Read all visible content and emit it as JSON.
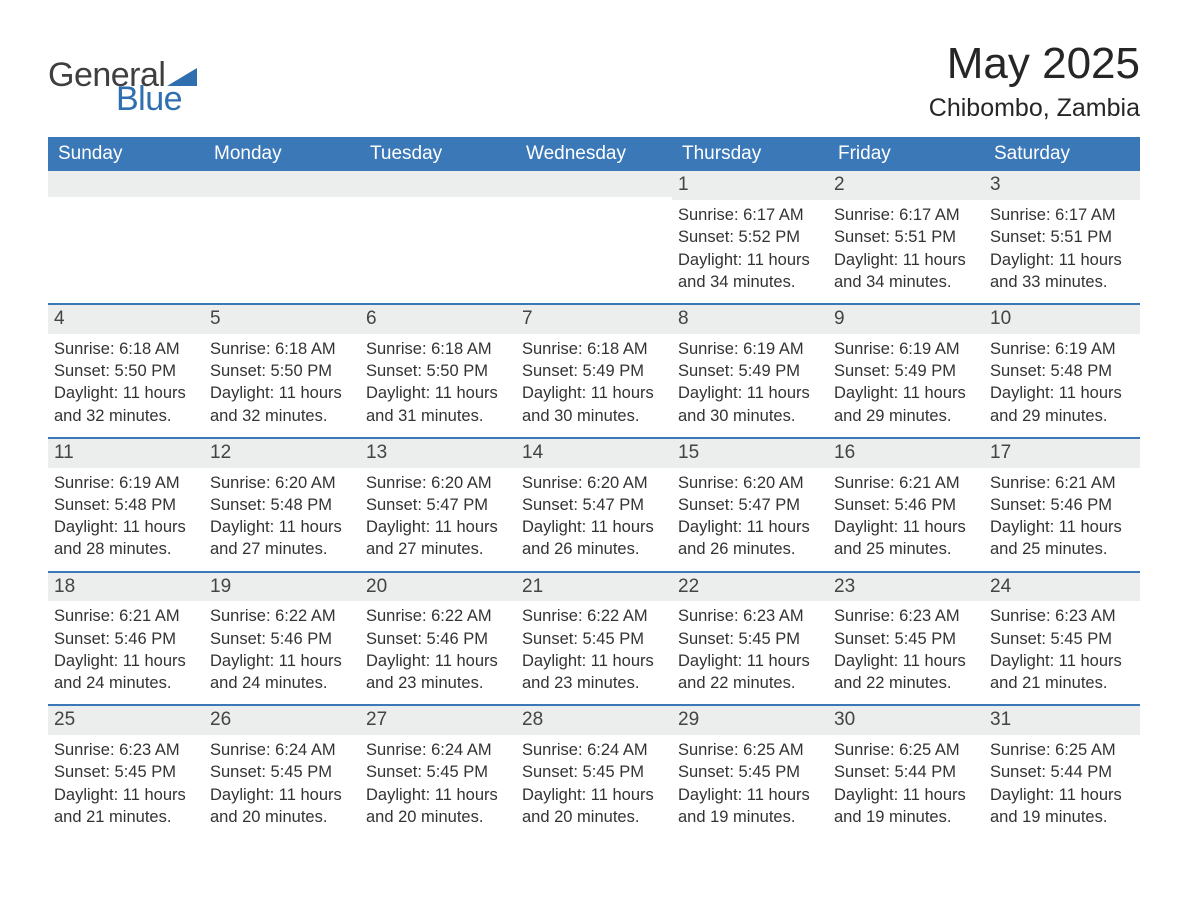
{
  "logo": {
    "text1": "General",
    "text2": "Blue",
    "tri_color": "#2f6fb0"
  },
  "title": "May 2025",
  "location": "Chibombo, Zambia",
  "colors": {
    "header_bg": "#3b78b8",
    "header_text": "#ffffff",
    "row_accent": "#3b78b8",
    "daynum_bg": "#eceded",
    "body_text": "#333333",
    "title_text": "#262626"
  },
  "weekdays": [
    "Sunday",
    "Monday",
    "Tuesday",
    "Wednesday",
    "Thursday",
    "Friday",
    "Saturday"
  ],
  "weeks": [
    [
      {
        "day": "",
        "sunrise": "",
        "sunset": "",
        "daylight": ""
      },
      {
        "day": "",
        "sunrise": "",
        "sunset": "",
        "daylight": ""
      },
      {
        "day": "",
        "sunrise": "",
        "sunset": "",
        "daylight": ""
      },
      {
        "day": "",
        "sunrise": "",
        "sunset": "",
        "daylight": ""
      },
      {
        "day": "1",
        "sunrise": "Sunrise: 6:17 AM",
        "sunset": "Sunset: 5:52 PM",
        "daylight": "Daylight: 11 hours and 34 minutes."
      },
      {
        "day": "2",
        "sunrise": "Sunrise: 6:17 AM",
        "sunset": "Sunset: 5:51 PM",
        "daylight": "Daylight: 11 hours and 34 minutes."
      },
      {
        "day": "3",
        "sunrise": "Sunrise: 6:17 AM",
        "sunset": "Sunset: 5:51 PM",
        "daylight": "Daylight: 11 hours and 33 minutes."
      }
    ],
    [
      {
        "day": "4",
        "sunrise": "Sunrise: 6:18 AM",
        "sunset": "Sunset: 5:50 PM",
        "daylight": "Daylight: 11 hours and 32 minutes."
      },
      {
        "day": "5",
        "sunrise": "Sunrise: 6:18 AM",
        "sunset": "Sunset: 5:50 PM",
        "daylight": "Daylight: 11 hours and 32 minutes."
      },
      {
        "day": "6",
        "sunrise": "Sunrise: 6:18 AM",
        "sunset": "Sunset: 5:50 PM",
        "daylight": "Daylight: 11 hours and 31 minutes."
      },
      {
        "day": "7",
        "sunrise": "Sunrise: 6:18 AM",
        "sunset": "Sunset: 5:49 PM",
        "daylight": "Daylight: 11 hours and 30 minutes."
      },
      {
        "day": "8",
        "sunrise": "Sunrise: 6:19 AM",
        "sunset": "Sunset: 5:49 PM",
        "daylight": "Daylight: 11 hours and 30 minutes."
      },
      {
        "day": "9",
        "sunrise": "Sunrise: 6:19 AM",
        "sunset": "Sunset: 5:49 PM",
        "daylight": "Daylight: 11 hours and 29 minutes."
      },
      {
        "day": "10",
        "sunrise": "Sunrise: 6:19 AM",
        "sunset": "Sunset: 5:48 PM",
        "daylight": "Daylight: 11 hours and 29 minutes."
      }
    ],
    [
      {
        "day": "11",
        "sunrise": "Sunrise: 6:19 AM",
        "sunset": "Sunset: 5:48 PM",
        "daylight": "Daylight: 11 hours and 28 minutes."
      },
      {
        "day": "12",
        "sunrise": "Sunrise: 6:20 AM",
        "sunset": "Sunset: 5:48 PM",
        "daylight": "Daylight: 11 hours and 27 minutes."
      },
      {
        "day": "13",
        "sunrise": "Sunrise: 6:20 AM",
        "sunset": "Sunset: 5:47 PM",
        "daylight": "Daylight: 11 hours and 27 minutes."
      },
      {
        "day": "14",
        "sunrise": "Sunrise: 6:20 AM",
        "sunset": "Sunset: 5:47 PM",
        "daylight": "Daylight: 11 hours and 26 minutes."
      },
      {
        "day": "15",
        "sunrise": "Sunrise: 6:20 AM",
        "sunset": "Sunset: 5:47 PM",
        "daylight": "Daylight: 11 hours and 26 minutes."
      },
      {
        "day": "16",
        "sunrise": "Sunrise: 6:21 AM",
        "sunset": "Sunset: 5:46 PM",
        "daylight": "Daylight: 11 hours and 25 minutes."
      },
      {
        "day": "17",
        "sunrise": "Sunrise: 6:21 AM",
        "sunset": "Sunset: 5:46 PM",
        "daylight": "Daylight: 11 hours and 25 minutes."
      }
    ],
    [
      {
        "day": "18",
        "sunrise": "Sunrise: 6:21 AM",
        "sunset": "Sunset: 5:46 PM",
        "daylight": "Daylight: 11 hours and 24 minutes."
      },
      {
        "day": "19",
        "sunrise": "Sunrise: 6:22 AM",
        "sunset": "Sunset: 5:46 PM",
        "daylight": "Daylight: 11 hours and 24 minutes."
      },
      {
        "day": "20",
        "sunrise": "Sunrise: 6:22 AM",
        "sunset": "Sunset: 5:46 PM",
        "daylight": "Daylight: 11 hours and 23 minutes."
      },
      {
        "day": "21",
        "sunrise": "Sunrise: 6:22 AM",
        "sunset": "Sunset: 5:45 PM",
        "daylight": "Daylight: 11 hours and 23 minutes."
      },
      {
        "day": "22",
        "sunrise": "Sunrise: 6:23 AM",
        "sunset": "Sunset: 5:45 PM",
        "daylight": "Daylight: 11 hours and 22 minutes."
      },
      {
        "day": "23",
        "sunrise": "Sunrise: 6:23 AM",
        "sunset": "Sunset: 5:45 PM",
        "daylight": "Daylight: 11 hours and 22 minutes."
      },
      {
        "day": "24",
        "sunrise": "Sunrise: 6:23 AM",
        "sunset": "Sunset: 5:45 PM",
        "daylight": "Daylight: 11 hours and 21 minutes."
      }
    ],
    [
      {
        "day": "25",
        "sunrise": "Sunrise: 6:23 AM",
        "sunset": "Sunset: 5:45 PM",
        "daylight": "Daylight: 11 hours and 21 minutes."
      },
      {
        "day": "26",
        "sunrise": "Sunrise: 6:24 AM",
        "sunset": "Sunset: 5:45 PM",
        "daylight": "Daylight: 11 hours and 20 minutes."
      },
      {
        "day": "27",
        "sunrise": "Sunrise: 6:24 AM",
        "sunset": "Sunset: 5:45 PM",
        "daylight": "Daylight: 11 hours and 20 minutes."
      },
      {
        "day": "28",
        "sunrise": "Sunrise: 6:24 AM",
        "sunset": "Sunset: 5:45 PM",
        "daylight": "Daylight: 11 hours and 20 minutes."
      },
      {
        "day": "29",
        "sunrise": "Sunrise: 6:25 AM",
        "sunset": "Sunset: 5:45 PM",
        "daylight": "Daylight: 11 hours and 19 minutes."
      },
      {
        "day": "30",
        "sunrise": "Sunrise: 6:25 AM",
        "sunset": "Sunset: 5:44 PM",
        "daylight": "Daylight: 11 hours and 19 minutes."
      },
      {
        "day": "31",
        "sunrise": "Sunrise: 6:25 AM",
        "sunset": "Sunset: 5:44 PM",
        "daylight": "Daylight: 11 hours and 19 minutes."
      }
    ]
  ]
}
